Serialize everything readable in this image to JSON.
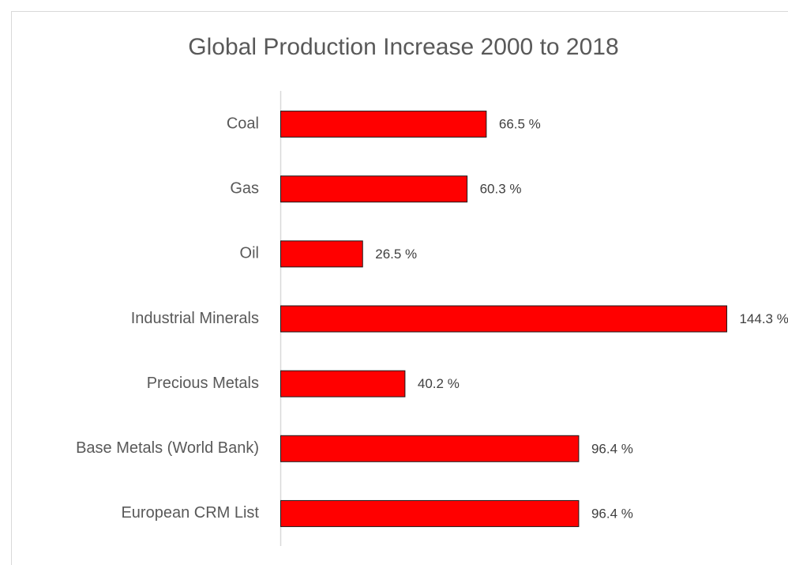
{
  "chart_data": {
    "type": "bar",
    "orientation": "horizontal",
    "title": "Global Production Increase 2000 to 2018",
    "categories": [
      "Coal",
      "Gas",
      "Oil",
      "Industrial Minerals",
      "Precious Metals",
      "Base Metals (World Bank)",
      "European CRM List"
    ],
    "values": [
      66.5,
      60.3,
      26.5,
      144.3,
      40.2,
      96.4,
      96.4
    ],
    "value_labels": [
      "66.5 %",
      "60.3 %",
      "26.5 %",
      "144.3 %",
      "40.2 %",
      "96.4 %",
      "96.4 %"
    ],
    "color": "#ff0000",
    "xlim": [
      0,
      150
    ]
  }
}
